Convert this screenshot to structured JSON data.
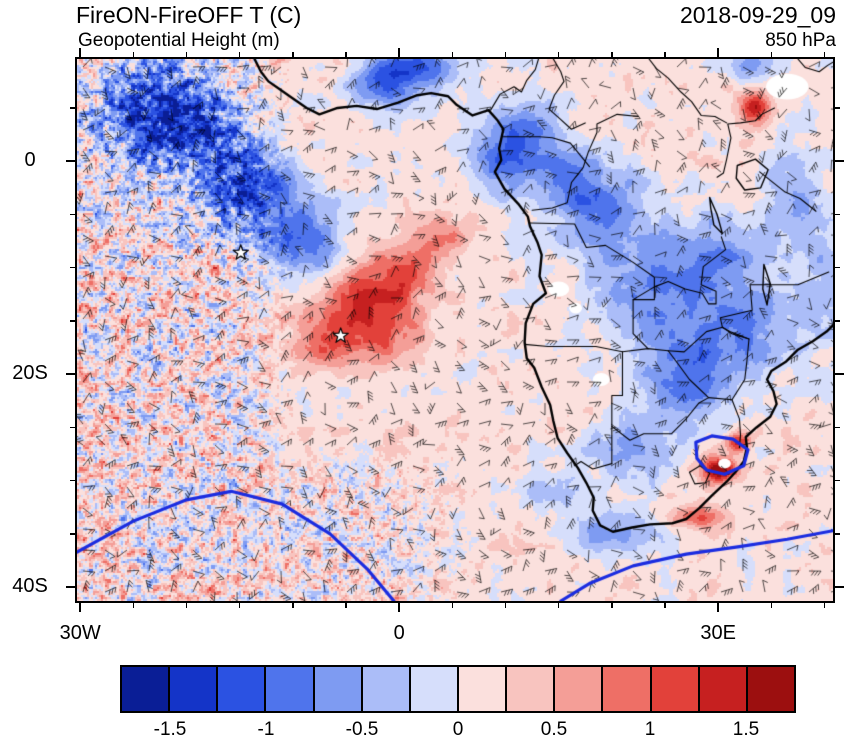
{
  "chart_data": {
    "type": "heatmap",
    "title": "FireON-FireOFF T (C)",
    "overlay": "Geopotential Height (m)",
    "timestamp": "2018-09-29_09",
    "level": "850 hPa",
    "map": {
      "projection": "cylindrical-equidistant",
      "region": "Southern Africa and South Atlantic",
      "lon_range": [
        -30.3,
        40.8
      ],
      "lat_range": [
        9.6,
        -41.3
      ],
      "x_ticks": [
        {
          "value": -30,
          "label": "30W"
        },
        {
          "value": 0,
          "label": "0"
        },
        {
          "value": 30,
          "label": "30E"
        }
      ],
      "y_ticks": [
        {
          "value": 0,
          "label": "0"
        },
        {
          "value": -20,
          "label": "20S"
        },
        {
          "value": -40,
          "label": "40S"
        }
      ],
      "minor_tick_deg": 5
    },
    "colorbar": {
      "variable": "FireON-FireOFF temperature difference (C)",
      "levels": [
        -1.5,
        -1.25,
        -1,
        -0.75,
        -0.5,
        -0.25,
        0,
        0.25,
        0.5,
        0.75,
        1,
        1.25,
        1.5
      ],
      "colors": [
        "#0a1e96",
        "#1434c8",
        "#2b52e2",
        "#4f74ec",
        "#7e9bf2",
        "#abbdf8",
        "#d6defb",
        "#fbe0dd",
        "#f8c4bf",
        "#f49e97",
        "#ee6f66",
        "#e2413a",
        "#c62020",
        "#9c0f0f"
      ],
      "tick_labels": [
        "-1.5",
        "-1",
        "-0.5",
        "0",
        "0.5",
        "1",
        "1.5"
      ]
    },
    "height_contour_color": "#1b2ce0",
    "stars": [
      [
        -14.9,
        -8.6
      ],
      [
        -5.5,
        -16.4
      ]
    ],
    "field_model": {
      "base": 0.12,
      "texture_amp": 0.33,
      "speckle_amp": 1.35,
      "blobs": [
        [
          -20,
          3,
          6,
          4,
          -1.2
        ],
        [
          -14,
          -3,
          5,
          4,
          -1.3
        ],
        [
          -9,
          -8,
          4,
          3.5,
          -1.0
        ],
        [
          -24,
          6,
          5,
          4,
          -0.9
        ],
        [
          -1,
          7.5,
          3,
          2.5,
          -1.3
        ],
        [
          3,
          9,
          3,
          2,
          -1.0
        ],
        [
          -3,
          -13,
          4.5,
          3.5,
          1.1
        ],
        [
          -7,
          -17,
          3.5,
          2.5,
          0.8
        ],
        [
          1,
          -10,
          3,
          2.5,
          0.7
        ],
        [
          -1,
          -17,
          3,
          2.5,
          0.6
        ],
        [
          4,
          -7,
          2.5,
          2.5,
          0.6
        ],
        [
          9.5,
          0,
          3,
          3,
          -0.9
        ],
        [
          12,
          3,
          3,
          3,
          -0.8
        ],
        [
          19,
          -5,
          5,
          4,
          -0.85
        ],
        [
          24,
          -12,
          6,
          5,
          -0.8
        ],
        [
          27,
          -20,
          5,
          5,
          -0.9
        ],
        [
          30,
          -9,
          4,
          4,
          -0.7
        ],
        [
          16,
          -1,
          3.5,
          3,
          -0.75
        ],
        [
          33,
          -16,
          4,
          4,
          -0.7
        ],
        [
          22,
          -27,
          4,
          3,
          -0.6
        ],
        [
          37,
          -4,
          3,
          5,
          -0.6
        ],
        [
          40,
          -12,
          3,
          6,
          -0.5
        ],
        [
          33,
          9,
          2.5,
          1.5,
          -0.8
        ],
        [
          30,
          -29,
          1.6,
          1.2,
          1.8
        ],
        [
          31.8,
          -26.5,
          1.2,
          1,
          1.3
        ],
        [
          28,
          -33.5,
          2.5,
          1,
          0.9
        ],
        [
          33.5,
          5,
          1.5,
          1.5,
          1.4
        ],
        [
          20,
          -35,
          4,
          2,
          -0.8
        ],
        [
          15,
          -31,
          3,
          2,
          -0.6
        ]
      ]
    },
    "white_patches": [
      [
        15.0,
        -12.0,
        1.0,
        0.7
      ],
      [
        16.6,
        -13.8,
        0.6,
        0.5
      ],
      [
        19.0,
        -20.5,
        0.8,
        0.6
      ],
      [
        36.5,
        7.0,
        2.0,
        1.2
      ],
      [
        30.6,
        -28.4,
        0.6,
        0.45
      ]
    ],
    "coast": [
      [
        -13.6,
        9.6
      ],
      [
        -13.0,
        8.4
      ],
      [
        -12.3,
        7.5
      ],
      [
        -11.3,
        6.8
      ],
      [
        -10.3,
        6.1
      ],
      [
        -8.7,
        5.0
      ],
      [
        -7.5,
        4.4
      ],
      [
        -5.8,
        5.0
      ],
      [
        -4.0,
        5.2
      ],
      [
        -2.1,
        4.9
      ],
      [
        -0.1,
        5.5
      ],
      [
        1.7,
        6.2
      ],
      [
        3.0,
        6.4
      ],
      [
        4.6,
        6.1
      ],
      [
        5.4,
        5.3
      ],
      [
        6.9,
        4.3
      ],
      [
        8.4,
        4.8
      ],
      [
        9.2,
        3.9
      ],
      [
        9.8,
        3.0
      ],
      [
        9.4,
        1.2
      ],
      [
        9.6,
        0.1
      ],
      [
        9.0,
        -1.0
      ],
      [
        9.9,
        -2.6
      ],
      [
        11.2,
        -4.0
      ],
      [
        12.1,
        -5.2
      ],
      [
        12.3,
        -6.1
      ],
      [
        13.0,
        -7.6
      ],
      [
        13.4,
        -8.8
      ],
      [
        13.2,
        -10.8
      ],
      [
        13.8,
        -12.4
      ],
      [
        12.6,
        -13.4
      ],
      [
        11.9,
        -15.2
      ],
      [
        11.8,
        -17.0
      ],
      [
        12.0,
        -18.5
      ],
      [
        12.7,
        -19.4
      ],
      [
        13.4,
        -21.2
      ],
      [
        14.2,
        -22.9
      ],
      [
        14.5,
        -24.4
      ],
      [
        14.9,
        -26.0
      ],
      [
        15.8,
        -27.4
      ],
      [
        16.8,
        -28.8
      ],
      [
        17.6,
        -30.2
      ],
      [
        18.3,
        -31.6
      ],
      [
        18.2,
        -32.8
      ],
      [
        18.9,
        -34.2
      ],
      [
        20.1,
        -34.8
      ],
      [
        21.9,
        -34.4
      ],
      [
        23.6,
        -34.1
      ],
      [
        25.7,
        -34.0
      ],
      [
        27.0,
        -33.6
      ],
      [
        28.2,
        -32.6
      ],
      [
        29.4,
        -31.4
      ],
      [
        30.8,
        -30.1
      ],
      [
        31.8,
        -29.0
      ],
      [
        32.4,
        -28.2
      ],
      [
        32.7,
        -26.9
      ],
      [
        32.6,
        -25.9
      ],
      [
        33.6,
        -25.0
      ],
      [
        34.9,
        -24.0
      ],
      [
        35.5,
        -22.8
      ],
      [
        35.2,
        -21.6
      ],
      [
        34.6,
        -20.5
      ],
      [
        35.0,
        -19.7
      ],
      [
        36.4,
        -18.8
      ],
      [
        37.5,
        -17.7
      ],
      [
        38.9,
        -16.9
      ],
      [
        40.2,
        -16.0
      ],
      [
        40.9,
        -15.3
      ]
    ],
    "borders": [
      [
        [
          11.8,
          -17.2
        ],
        [
          14.0,
          -17.4
        ],
        [
          18.5,
          -17.4
        ],
        [
          21.0,
          -17.9
        ],
        [
          23.4,
          -17.6
        ],
        [
          25.3,
          -17.8
        ]
      ],
      [
        [
          21.0,
          -17.9
        ],
        [
          21.0,
          -22.0
        ],
        [
          20.0,
          -22.0
        ],
        [
          20.0,
          -24.9
        ],
        [
          20.0,
          -28.4
        ]
      ],
      [
        [
          20.0,
          -28.4
        ],
        [
          18.2,
          -28.9
        ],
        [
          17.1,
          -28.2
        ],
        [
          16.5,
          -28.6
        ]
      ],
      [
        [
          20.0,
          -24.9
        ],
        [
          21.7,
          -26.2
        ],
        [
          23.0,
          -25.6
        ],
        [
          25.6,
          -25.6
        ],
        [
          26.9,
          -24.3
        ],
        [
          28.2,
          -22.7
        ],
        [
          29.1,
          -22.2
        ]
      ],
      [
        [
          29.1,
          -22.2
        ],
        [
          31.3,
          -22.4
        ],
        [
          32.0,
          -24.2
        ],
        [
          32.1,
          -25.7
        ],
        [
          32.0,
          -26.9
        ]
      ],
      [
        [
          12.3,
          -5.8
        ],
        [
          16.5,
          -5.9
        ],
        [
          17.6,
          -8.1
        ],
        [
          19.4,
          -7.9
        ],
        [
          22.0,
          -9.5
        ],
        [
          24.0,
          -10.9
        ],
        [
          24.0,
          -13.0
        ],
        [
          22.0,
          -13.0
        ],
        [
          22.0,
          -16.2
        ],
        [
          23.4,
          -17.6
        ]
      ],
      [
        [
          12.5,
          -4.6
        ],
        [
          14.4,
          -4.4
        ],
        [
          15.8,
          -3.9
        ],
        [
          16.2,
          -2.0
        ],
        [
          17.3,
          -0.6
        ],
        [
          17.8,
          0.9
        ],
        [
          18.6,
          2.7
        ],
        [
          18.6,
          3.5
        ],
        [
          20.5,
          4.4
        ],
        [
          22.5,
          4.2
        ]
      ],
      [
        [
          8.6,
          4.8
        ],
        [
          9.5,
          6.3
        ],
        [
          10.8,
          7.0
        ],
        [
          11.5,
          6.5
        ],
        [
          12.0,
          7.6
        ],
        [
          12.8,
          8.6
        ],
        [
          13.1,
          9.6
        ]
      ],
      [
        [
          22.0,
          -13.0
        ],
        [
          24.0,
          -11.8
        ],
        [
          25.3,
          -11.3
        ],
        [
          26.9,
          -12.0
        ],
        [
          28.5,
          -12.4
        ],
        [
          29.1,
          -13.4
        ],
        [
          29.8,
          -13.4
        ],
        [
          29.8,
          -12.2
        ],
        [
          28.4,
          -11.6
        ],
        [
          28.6,
          -9.9
        ],
        [
          30.7,
          -8.3
        ],
        [
          30.3,
          -7.1
        ]
      ],
      [
        [
          25.3,
          -17.8
        ],
        [
          26.8,
          -17.9
        ],
        [
          28.9,
          -16.0
        ],
        [
          30.4,
          -15.6
        ],
        [
          31.1,
          -16.0
        ],
        [
          32.9,
          -16.7
        ]
      ],
      [
        [
          25.3,
          -17.8
        ],
        [
          26.2,
          -19.0
        ],
        [
          27.3,
          -20.5
        ],
        [
          29.1,
          -22.2
        ]
      ],
      [
        [
          27.3,
          -29.2
        ],
        [
          28.3,
          -28.6
        ],
        [
          29.2,
          -29.3
        ],
        [
          28.8,
          -30.2
        ],
        [
          27.8,
          -30.3
        ],
        [
          27.3,
          -29.2
        ]
      ],
      [
        [
          34.9,
          -11.6
        ],
        [
          37.5,
          -11.6
        ],
        [
          40.4,
          -10.4
        ]
      ],
      [
        [
          30.4,
          -15.6
        ],
        [
          30.2,
          -14.7
        ],
        [
          33.2,
          -14.0
        ],
        [
          33.0,
          -11.6
        ],
        [
          34.9,
          -11.6
        ]
      ],
      [
        [
          30.4,
          -15.6
        ],
        [
          31.3,
          -16.2
        ],
        [
          32.9,
          -16.7
        ],
        [
          32.7,
          -18.8
        ],
        [
          32.5,
          -20.5
        ],
        [
          32.0,
          -21.3
        ],
        [
          31.3,
          -22.4
        ]
      ],
      [
        [
          9.8,
          2.3
        ],
        [
          11.3,
          2.3
        ],
        [
          13.2,
          2.3
        ],
        [
          14.4,
          2.2
        ],
        [
          16.1,
          1.7
        ],
        [
          17.9,
          -0.5
        ]
      ],
      [
        [
          23.5,
          9.6
        ],
        [
          24.2,
          8.7
        ],
        [
          25.3,
          7.8
        ],
        [
          26.5,
          6.5
        ],
        [
          27.5,
          5.6
        ],
        [
          28.4,
          4.3
        ],
        [
          29.7,
          4.2
        ],
        [
          30.8,
          3.6
        ]
      ],
      [
        [
          14.5,
          9.6
        ],
        [
          15.2,
          8.4
        ],
        [
          15.5,
          7.5
        ],
        [
          14.6,
          6.2
        ],
        [
          14.1,
          4.9
        ],
        [
          15.1,
          4.0
        ],
        [
          16.2,
          3.0
        ],
        [
          17.5,
          3.6
        ]
      ],
      [
        [
          29.9,
          -1.5
        ],
        [
          30.5,
          -1.1
        ],
        [
          30.8,
          0.2
        ],
        [
          31.2,
          2.2
        ],
        [
          30.9,
          3.5
        ],
        [
          32.1,
          3.6
        ],
        [
          33.5,
          3.8
        ],
        [
          34.1,
          4.4
        ],
        [
          35.3,
          5.0
        ]
      ],
      [
        [
          33.9,
          -1.0
        ],
        [
          36.3,
          -2.9
        ],
        [
          37.7,
          -3.5
        ],
        [
          39.2,
          -4.7
        ]
      ],
      [
        [
          37.5,
          9.6
        ],
        [
          38.2,
          8.8
        ],
        [
          39.5,
          8.4
        ],
        [
          40.3,
          9.0
        ],
        [
          40.8,
          9.3
        ]
      ]
    ],
    "lakes": [
      [
        [
          31.8,
          -0.4
        ],
        [
          33.5,
          0.2
        ],
        [
          34.7,
          -0.8
        ],
        [
          34.0,
          -2.5
        ],
        [
          32.5,
          -2.7
        ],
        [
          31.7,
          -1.6
        ]
      ],
      [
        [
          29.2,
          -3.4
        ],
        [
          29.9,
          -5.0
        ],
        [
          30.4,
          -6.8
        ],
        [
          29.6,
          -6.0
        ],
        [
          29.3,
          -4.4
        ]
      ],
      [
        [
          34.3,
          -9.7
        ],
        [
          34.9,
          -11.5
        ],
        [
          34.6,
          -13.5
        ],
        [
          34.2,
          -12.0
        ]
      ]
    ],
    "height_contours": [
      [
        [
          -30.3,
          -36.7
        ],
        [
          -25,
          -33.8
        ],
        [
          -20,
          -31.8
        ],
        [
          -15.8,
          -31.0
        ],
        [
          -11,
          -32.2
        ],
        [
          -6.5,
          -35.0
        ],
        [
          -3,
          -38.3
        ],
        [
          -0.5,
          -41.3
        ]
      ],
      [
        [
          15.2,
          -41.3
        ],
        [
          18,
          -39.6
        ],
        [
          22,
          -38.0
        ],
        [
          27,
          -36.9
        ],
        [
          32,
          -36.2
        ],
        [
          36.5,
          -35.5
        ],
        [
          40.8,
          -34.7
        ]
      ],
      [
        [
          27.9,
          -26.4
        ],
        [
          29.4,
          -25.8
        ],
        [
          31.4,
          -26.1
        ],
        [
          32.8,
          -27.1
        ],
        [
          32.4,
          -28.6
        ],
        [
          30.6,
          -29.4
        ],
        [
          28.9,
          -29.0
        ],
        [
          28.0,
          -27.9
        ],
        [
          27.9,
          -26.4
        ]
      ]
    ]
  }
}
